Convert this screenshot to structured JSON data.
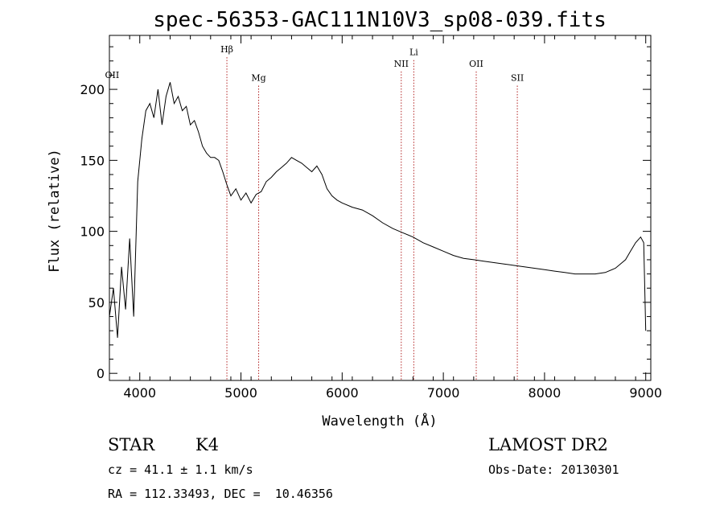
{
  "chart_data": {
    "type": "line",
    "title": "spec-56353-GAC111N10V3_sp08-039.fits",
    "xlabel": "Wavelength (Å)",
    "ylabel": "Flux (relative)",
    "xlim": [
      3700,
      9050
    ],
    "ylim": [
      -5,
      238
    ],
    "x_ticks": [
      "4000",
      "5000",
      "6000",
      "7000",
      "8000",
      "9000"
    ],
    "y_ticks": [
      "0",
      "50",
      "100",
      "150",
      "200"
    ],
    "grid": false,
    "line_color": "#000000",
    "marker_color": "#b22222",
    "lines": [
      {
        "label": "OII",
        "wavelength": 3727,
        "label_flux": 208
      },
      {
        "label": "Hβ",
        "wavelength": 4861,
        "label_flux": 226
      },
      {
        "label": "Mg",
        "wavelength": 5175,
        "label_flux": 206
      },
      {
        "label": "NII",
        "wavelength": 6584,
        "label_flux": 216
      },
      {
        "label": "Li",
        "wavelength": 6708,
        "label_flux": 224
      },
      {
        "label": "OII",
        "wavelength": 7325,
        "label_flux": 216
      },
      {
        "label": "SII",
        "wavelength": 7731,
        "label_flux": 206
      }
    ],
    "spectrum": {
      "wavelength": [
        3700,
        3740,
        3780,
        3820,
        3860,
        3900,
        3940,
        3980,
        4020,
        4060,
        4100,
        4140,
        4180,
        4220,
        4260,
        4300,
        4340,
        4380,
        4420,
        4460,
        4500,
        4540,
        4580,
        4620,
        4660,
        4700,
        4740,
        4780,
        4820,
        4860,
        4900,
        4950,
        5000,
        5050,
        5100,
        5150,
        5200,
        5250,
        5300,
        5350,
        5400,
        5450,
        5500,
        5550,
        5600,
        5650,
        5700,
        5750,
        5800,
        5850,
        5900,
        5950,
        6000,
        6100,
        6200,
        6300,
        6400,
        6500,
        6600,
        6700,
        6800,
        6900,
        7000,
        7100,
        7200,
        7300,
        7400,
        7500,
        7600,
        7700,
        7800,
        7900,
        8000,
        8100,
        8200,
        8300,
        8400,
        8500,
        8600,
        8700,
        8800,
        8850,
        8900,
        8950,
        8980,
        9000
      ],
      "flux": [
        40,
        60,
        25,
        75,
        45,
        95,
        40,
        135,
        165,
        185,
        190,
        180,
        200,
        175,
        195,
        205,
        190,
        195,
        185,
        188,
        175,
        178,
        170,
        160,
        155,
        152,
        152,
        150,
        142,
        133,
        125,
        130,
        122,
        127,
        120,
        126,
        128,
        135,
        138,
        142,
        145,
        148,
        152,
        150,
        148,
        145,
        142,
        146,
        140,
        130,
        125,
        122,
        120,
        117,
        115,
        111,
        106,
        102,
        99,
        96,
        92,
        89,
        86,
        83,
        81,
        80,
        79,
        78,
        77,
        76,
        75,
        74,
        73,
        72,
        71,
        70,
        70,
        70,
        71,
        74,
        80,
        86,
        92,
        96,
        92,
        30
      ]
    }
  },
  "info": {
    "class": "STAR",
    "subclass": "K4",
    "survey": "LAMOST DR2",
    "cz": "cz = 41.1 ± 1.1 km/s",
    "obs_date": "Obs-Date: 20130301",
    "coords": "RA = 112.33493, DEC =  10.46356"
  }
}
